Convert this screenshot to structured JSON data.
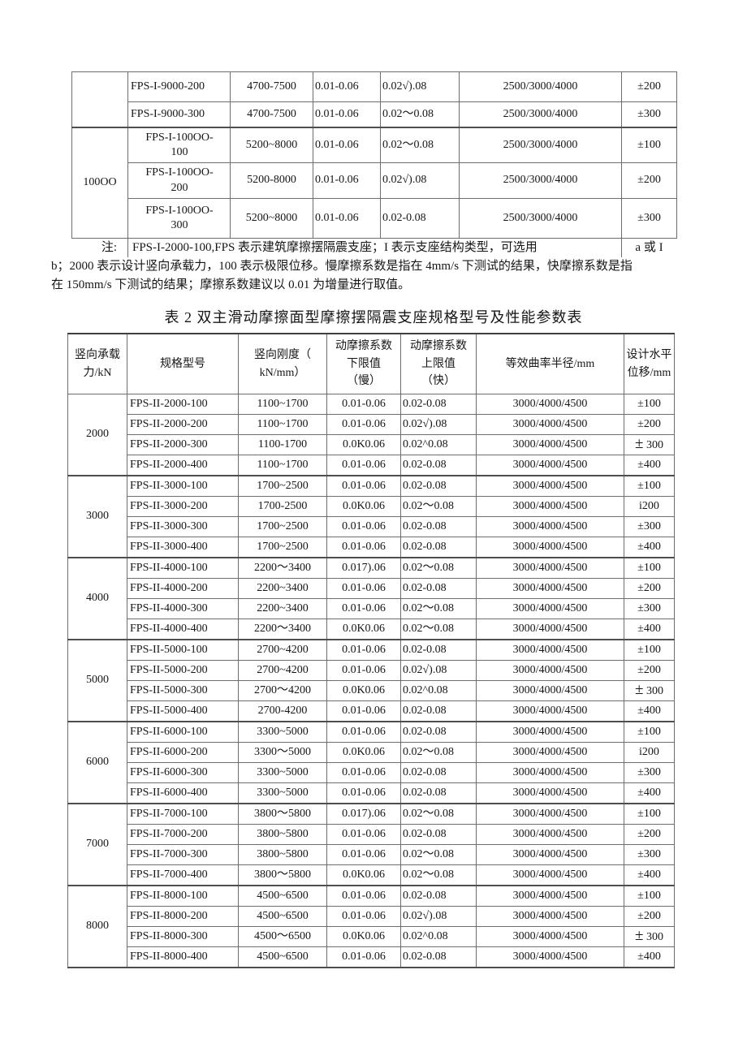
{
  "table1": {
    "groups": [
      {
        "label": "",
        "rows": [
          {
            "model": "FPS-I-9000-200",
            "stiffness": "4700-7500",
            "lower": "0.01-0.06",
            "upper": "0.02√).08",
            "radius": "2500/3000/4000",
            "disp": "±200"
          },
          {
            "model": "FPS-I-9000-300",
            "stiffness": "4700-7500",
            "lower": "0.01-0.06",
            "upper": "0.02～0.08",
            "radius": "2500/3000/4000",
            "disp": "±300"
          }
        ]
      },
      {
        "label": "100OO",
        "rows": [
          {
            "model": "FPS-I-100OO-\n100",
            "stiffness": "5200~8000",
            "lower": "0.01-0.06",
            "upper": "0.02～0.08",
            "radius": "2500/3000/4000",
            "disp": "±100"
          },
          {
            "model": "FPS-I-100OO-\n200",
            "stiffness": "5200-8000",
            "lower": "0.01-0.06",
            "upper": "0.02√).08",
            "radius": "2500/3000/4000",
            "disp": "±200"
          },
          {
            "model": "FPS-I-100OO-\n300",
            "stiffness": "5200~8000",
            "lower": "0.01-0.06",
            "upper": "0.02-0.08",
            "radius": "2500/3000/4000",
            "disp": "±300"
          }
        ]
      }
    ]
  },
  "note": {
    "label": "注:",
    "line1": "FPS-I-2000-100,FPS 表示建筑摩擦摆隔震支座；I 表示支座结构类型，可选用",
    "line1_right": "a 或 I",
    "line2": "b；2000 表示设计竖向承载力，100 表示极限位移。慢摩擦系数是指在 4mm/s 下测试的结果，快摩擦系数是指",
    "line3": "在 150mm/s 下测试的结果；摩擦系数建议以 0.01 为增量进行取值。"
  },
  "table2": {
    "title": "表 2 双主滑动摩擦面型摩擦摆隔震支座规格型号及性能参数表",
    "headers": [
      "竖向承载\n力/kN",
      "规格型号",
      "竖向刚度（\nkN/mm）",
      "动摩擦系数\n下限值\n（慢）",
      "动摩擦系数\n上限值\n（快）",
      "等效曲率半径/mm",
      "设计水平\n位移/mm"
    ],
    "groups": [
      {
        "label": "2000",
        "rows": [
          {
            "model": "FPS-II-2000-100",
            "stiffness": "1100~1700",
            "lower": "0.01-0.06",
            "upper": "0.02-0.08",
            "radius": "3000/4000/4500",
            "disp": "±100"
          },
          {
            "model": "FPS-II-2000-200",
            "stiffness": "1100~1700",
            "lower": "0.01-0.06",
            "upper": "0.02√).08",
            "radius": "3000/4000/4500",
            "disp": "±200"
          },
          {
            "model": "FPS-II-2000-300",
            "stiffness": "1100-1700",
            "lower": "0.0K0.06",
            "upper": "0.02^0.08",
            "radius": "3000/4000/4500",
            "disp": "± 300",
            "big": true
          },
          {
            "model": "FPS-II-2000-400",
            "stiffness": "1100~1700",
            "lower": "0.01-0.06",
            "upper": "0.02-0.08",
            "radius": "3000/4000/4500",
            "disp": "±400"
          }
        ]
      },
      {
        "label": "3000",
        "rows": [
          {
            "model": "FPS-II-3000-100",
            "stiffness": "1700~2500",
            "lower": "0.01-0.06",
            "upper": "0.02-0.08",
            "radius": "3000/4000/4500",
            "disp": "±100"
          },
          {
            "model": "FPS-II-3000-200",
            "stiffness": "1700-2500",
            "lower": "0.0K0.06",
            "upper": "0.02～0.08",
            "radius": "3000/4000/4500",
            "disp": "i200"
          },
          {
            "model": "FPS-II-3000-300",
            "stiffness": "1700~2500",
            "lower": "0.01-0.06",
            "upper": "0.02-0.08",
            "radius": "3000/4000/4500",
            "disp": "±300"
          },
          {
            "model": "FPS-II-3000-400",
            "stiffness": "1700~2500",
            "lower": "0.01-0.06",
            "upper": "0.02-0.08",
            "radius": "3000/4000/4500",
            "disp": "±400"
          }
        ]
      },
      {
        "label": "4000",
        "rows": [
          {
            "model": "FPS-II-4000-100",
            "stiffness": "2200～3400",
            "lower": "0.017).06",
            "upper": "0.02～0.08",
            "radius": "3000/4000/4500",
            "disp": "±100"
          },
          {
            "model": "FPS-II-4000-200",
            "stiffness": "2200~3400",
            "lower": "0.01-0.06",
            "upper": "0.02-0.08",
            "radius": "3000/4000/4500",
            "disp": "±200"
          },
          {
            "model": "FPS-II-4000-300",
            "stiffness": "2200~3400",
            "lower": "0.01-0.06",
            "upper": "0.02～0.08",
            "radius": "3000/4000/4500",
            "disp": "±300"
          },
          {
            "model": "FPS-II-4000-400",
            "stiffness": "2200～3400",
            "lower": "0.0K0.06",
            "upper": "0.02～0.08",
            "radius": "3000/4000/4500",
            "disp": "±400"
          }
        ]
      },
      {
        "label": "5000",
        "rows": [
          {
            "model": "FPS-II-5000-100",
            "stiffness": "2700~4200",
            "lower": "0.01-0.06",
            "upper": "0.02-0.08",
            "radius": "3000/4000/4500",
            "disp": "±100"
          },
          {
            "model": "FPS-II-5000-200",
            "stiffness": "2700~4200",
            "lower": "0.01-0.06",
            "upper": "0.02√).08",
            "radius": "3000/4000/4500",
            "disp": "±200"
          },
          {
            "model": "FPS-II-5000-300",
            "stiffness": "2700～4200",
            "lower": "0.0K0.06",
            "upper": "0.02^0.08",
            "radius": "3000/4000/4500",
            "disp": "± 300",
            "big": true
          },
          {
            "model": "FPS-II-5000-400",
            "stiffness": "2700-4200",
            "lower": "0.01-0.06",
            "upper": "0.02-0.08",
            "radius": "3000/4000/4500",
            "disp": "±400"
          }
        ]
      },
      {
        "label": "6000",
        "rows": [
          {
            "model": "FPS-II-6000-100",
            "stiffness": "3300~5000",
            "lower": "0.01-0.06",
            "upper": "0.02-0.08",
            "radius": "3000/4000/4500",
            "disp": "±100"
          },
          {
            "model": "FPS-II-6000-200",
            "stiffness": "3300～5000",
            "lower": "0.0K0.06",
            "upper": "0.02～0.08",
            "radius": "3000/4000/4500",
            "disp": "i200"
          },
          {
            "model": "FPS-II-6000-300",
            "stiffness": "3300~5000",
            "lower": "0.01-0.06",
            "upper": "0.02-0.08",
            "radius": "3000/4000/4500",
            "disp": "±300"
          },
          {
            "model": "FPS-II-6000-400",
            "stiffness": "3300~5000",
            "lower": "0.01-0.06",
            "upper": "0.02-0.08",
            "radius": "3000/4000/4500",
            "disp": "±400"
          }
        ]
      },
      {
        "label": "7000",
        "rows": [
          {
            "model": "FPS-II-7000-100",
            "stiffness": "3800～5800",
            "lower": "0.017).06",
            "upper": "0.02～0.08",
            "radius": "3000/4000/4500",
            "disp": "±100"
          },
          {
            "model": "FPS-II-7000-200",
            "stiffness": "3800~5800",
            "lower": "0.01-0.06",
            "upper": "0.02-0.08",
            "radius": "3000/4000/4500",
            "disp": "±200"
          },
          {
            "model": "FPS-II-7000-300",
            "stiffness": "3800~5800",
            "lower": "0.01-0.06",
            "upper": "0.02～0.08",
            "radius": "3000/4000/4500",
            "disp": "±300"
          },
          {
            "model": "FPS-II-7000-400",
            "stiffness": "3800～5800",
            "lower": "0.0K0.06",
            "upper": "0.02～0.08",
            "radius": "3000/4000/4500",
            "disp": "±400"
          }
        ]
      },
      {
        "label": "8000",
        "rows": [
          {
            "model": "FPS-II-8000-100",
            "stiffness": "4500~6500",
            "lower": "0.01-0.06",
            "upper": "0.02-0.08",
            "radius": "3000/4000/4500",
            "disp": "±100"
          },
          {
            "model": "FPS-II-8000-200",
            "stiffness": "4500~6500",
            "lower": "0.01-0.06",
            "upper": "0.02√).08",
            "radius": "3000/4000/4500",
            "disp": "±200"
          },
          {
            "model": "FPS-II-8000-300",
            "stiffness": "4500～6500",
            "lower": "0.0K0.06",
            "upper": "0.02^0.08",
            "radius": "3000/4000/4500",
            "disp": "± 300",
            "big": true
          },
          {
            "model": "FPS-II-8000-400",
            "stiffness": "4500~6500",
            "lower": "0.01-0.06",
            "upper": "0.02-0.08",
            "radius": "3000/4000/4500",
            "disp": "±400"
          }
        ]
      }
    ]
  }
}
